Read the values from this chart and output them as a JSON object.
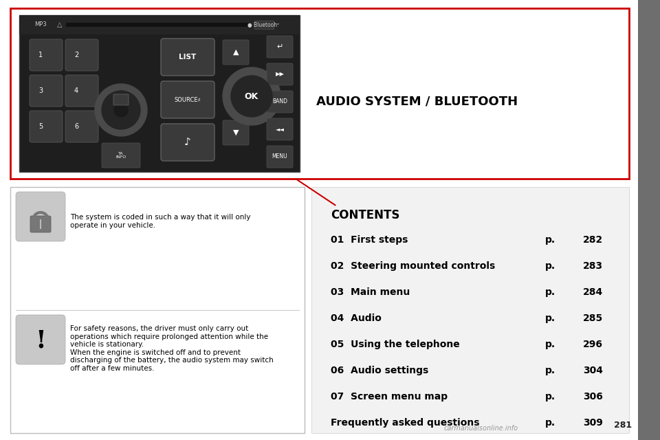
{
  "bg_color": "#e8e8e8",
  "page_bg": "#ffffff",
  "title": "AUDIO SYSTEM / BLUETOOTH",
  "contents_label": "CONTENTS",
  "toc_entries": [
    {
      "num": "01",
      "title": "First steps",
      "page": "282"
    },
    {
      "num": "02",
      "title": "Steering mounted controls",
      "page": "283"
    },
    {
      "num": "03",
      "title": "Main menu",
      "page": "284"
    },
    {
      "num": "04",
      "title": "Audio",
      "page": "285"
    },
    {
      "num": "05",
      "title": "Using the telephone",
      "page": "296"
    },
    {
      "num": "06",
      "title": "Audio settings",
      "page": "304"
    },
    {
      "num": "07",
      "title": "Screen menu map",
      "page": "306"
    },
    {
      "num": "",
      "title": "Frequently asked questions",
      "page": "309"
    }
  ],
  "lock_text": "The system is coded in such a way that it will only\noperate in your vehicle.",
  "warning_text": "For safety reasons, the driver must only carry out\noperations which require prolonged attention while the\nvehicle is stationary.\nWhen the engine is switched off and to prevent\ndischarging of the battery, the audio system may switch\noff after a few minutes.",
  "red_border_color": "#cc0000",
  "sidebar_color": "#6e6e6e",
  "icon_bg": "#c8c8c8",
  "page_number": "281",
  "watermark": "carmanualsonline.info",
  "radio_dark": "#1e1e1e",
  "radio_mid": "#2e2e2e",
  "radio_btn": "#3a3a3a",
  "radio_btn_edge": "#555555"
}
